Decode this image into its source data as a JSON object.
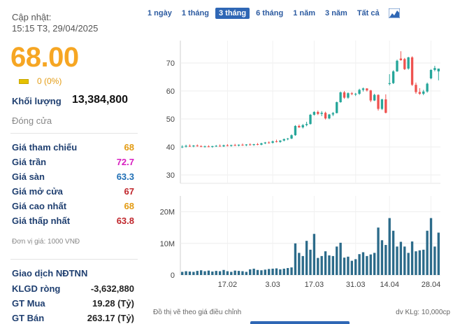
{
  "header": {
    "update_label": "Cập nhật:",
    "update_time": "15:15 T3, 29/04/2025"
  },
  "quote": {
    "price": "68.00",
    "change": "0 (0%)",
    "volume_label": "Khối lượng",
    "volume_value": "13,384,800",
    "status": "Đóng cửa"
  },
  "prices": [
    {
      "label": "Giá tham chiếu",
      "value": "68",
      "color": "#e39b12"
    },
    {
      "label": "Giá trần",
      "value": "72.7",
      "color": "#d81ec0"
    },
    {
      "label": "Giá sàn",
      "value": "63.3",
      "color": "#1f6fb5"
    },
    {
      "label": "Giá mở cửa",
      "value": "67",
      "color": "#c0262c"
    },
    {
      "label": "Giá cao nhất",
      "value": "68",
      "color": "#e39b12"
    },
    {
      "label": "Giá thấp nhất",
      "value": "63.8",
      "color": "#c0262c"
    }
  ],
  "unit_note": "Đơn vị giá: 1000 VNĐ",
  "foreign": {
    "title": "Giao dịch NĐTNN",
    "rows": [
      {
        "label": "KLGD ròng",
        "value": "-3,632,880"
      },
      {
        "label": "GT Mua",
        "value": "19.28 (Tỷ)"
      },
      {
        "label": "GT Bán",
        "value": "263.17 (Tỷ)"
      }
    ]
  },
  "tabs": [
    {
      "label": "1 ngày",
      "active": false
    },
    {
      "label": "1 tháng",
      "active": false
    },
    {
      "label": "3 tháng",
      "active": true
    },
    {
      "label": "6 tháng",
      "active": false
    },
    {
      "label": "1 năm",
      "active": false
    },
    {
      "label": "3 năm",
      "active": false
    },
    {
      "label": "Tất cả",
      "active": false
    }
  ],
  "tab_icon": "area-chart-icon",
  "footer": {
    "left": "Đồ thị vẽ theo giá điều chỉnh",
    "right": "dv KLg: 10,000cp"
  },
  "chart_data": {
    "type": "candlestick",
    "price_axis": {
      "ticks": [
        30,
        40,
        50,
        60,
        70
      ],
      "range": [
        27,
        78
      ]
    },
    "volume_axis": {
      "ticks": [
        "0",
        "10M",
        "20M"
      ],
      "values": [
        0,
        10,
        20
      ],
      "range": [
        0,
        25
      ]
    },
    "x_ticks": [
      {
        "label": "17.02",
        "index": 12
      },
      {
        "label": "3.03",
        "index": 24
      },
      {
        "label": "17.03",
        "index": 35
      },
      {
        "label": "31.03",
        "index": 46
      },
      {
        "label": "14.04",
        "index": 55
      },
      {
        "label": "28.04",
        "index": 66
      }
    ],
    "colors": {
      "up": "#26a69a",
      "down": "#ef5350",
      "neutral": "#555555"
    },
    "candles": [
      {
        "o": 40.0,
        "h": 40.6,
        "l": 39.6,
        "c": 40.1,
        "v": 1.0
      },
      {
        "o": 40.1,
        "h": 40.8,
        "l": 39.8,
        "c": 40.4,
        "v": 1.2
      },
      {
        "o": 40.4,
        "h": 40.9,
        "l": 40.0,
        "c": 40.2,
        "v": 1.1
      },
      {
        "o": 40.2,
        "h": 40.7,
        "l": 39.9,
        "c": 40.5,
        "v": 1.0
      },
      {
        "o": 40.5,
        "h": 40.9,
        "l": 40.1,
        "c": 40.3,
        "v": 1.3
      },
      {
        "o": 40.3,
        "h": 40.6,
        "l": 39.9,
        "c": 40.1,
        "v": 1.5
      },
      {
        "o": 40.1,
        "h": 40.5,
        "l": 39.8,
        "c": 40.2,
        "v": 1.2
      },
      {
        "o": 40.2,
        "h": 40.6,
        "l": 39.9,
        "c": 40.0,
        "v": 1.4
      },
      {
        "o": 40.0,
        "h": 40.4,
        "l": 39.7,
        "c": 40.3,
        "v": 1.1
      },
      {
        "o": 40.3,
        "h": 40.7,
        "l": 40.0,
        "c": 40.4,
        "v": 1.3
      },
      {
        "o": 40.4,
        "h": 40.9,
        "l": 40.1,
        "c": 40.2,
        "v": 1.2
      },
      {
        "o": 40.2,
        "h": 40.8,
        "l": 40.0,
        "c": 40.6,
        "v": 1.6
      },
      {
        "o": 40.6,
        "h": 41.0,
        "l": 40.2,
        "c": 40.4,
        "v": 1.2
      },
      {
        "o": 40.4,
        "h": 40.8,
        "l": 40.1,
        "c": 40.7,
        "v": 1.0
      },
      {
        "o": 40.7,
        "h": 41.1,
        "l": 40.3,
        "c": 40.5,
        "v": 1.4
      },
      {
        "o": 40.5,
        "h": 40.9,
        "l": 40.2,
        "c": 40.8,
        "v": 1.3
      },
      {
        "o": 40.8,
        "h": 41.2,
        "l": 40.4,
        "c": 40.6,
        "v": 1.2
      },
      {
        "o": 40.6,
        "h": 41.0,
        "l": 40.3,
        "c": 40.9,
        "v": 1.0
      },
      {
        "o": 40.9,
        "h": 41.3,
        "l": 40.5,
        "c": 40.7,
        "v": 1.8
      },
      {
        "o": 40.7,
        "h": 41.1,
        "l": 40.4,
        "c": 41.0,
        "v": 2.0
      },
      {
        "o": 41.0,
        "h": 41.4,
        "l": 40.6,
        "c": 40.8,
        "v": 1.6
      },
      {
        "o": 40.8,
        "h": 41.5,
        "l": 40.6,
        "c": 41.3,
        "v": 1.5
      },
      {
        "o": 41.3,
        "h": 41.8,
        "l": 41.0,
        "c": 41.6,
        "v": 1.7
      },
      {
        "o": 41.6,
        "h": 42.0,
        "l": 41.2,
        "c": 41.5,
        "v": 1.9
      },
      {
        "o": 41.5,
        "h": 42.3,
        "l": 41.2,
        "c": 42.0,
        "v": 2.0
      },
      {
        "o": 42.0,
        "h": 42.6,
        "l": 41.6,
        "c": 41.8,
        "v": 2.1
      },
      {
        "o": 41.8,
        "h": 42.4,
        "l": 41.5,
        "c": 42.3,
        "v": 1.8
      },
      {
        "o": 42.3,
        "h": 43.0,
        "l": 42.0,
        "c": 42.8,
        "v": 2.0
      },
      {
        "o": 42.8,
        "h": 43.2,
        "l": 42.4,
        "c": 43.0,
        "v": 2.2
      },
      {
        "o": 43.0,
        "h": 44.5,
        "l": 42.8,
        "c": 44.2,
        "v": 2.4
      },
      {
        "o": 44.2,
        "h": 47.8,
        "l": 44.0,
        "c": 47.5,
        "v": 10.0
      },
      {
        "o": 47.5,
        "h": 48.0,
        "l": 46.8,
        "c": 47.0,
        "v": 7.0
      },
      {
        "o": 47.0,
        "h": 48.2,
        "l": 46.6,
        "c": 47.8,
        "v": 6.0
      },
      {
        "o": 47.8,
        "h": 49.0,
        "l": 47.4,
        "c": 48.2,
        "v": 10.8
      },
      {
        "o": 48.2,
        "h": 51.8,
        "l": 48.0,
        "c": 51.5,
        "v": 8.0
      },
      {
        "o": 51.5,
        "h": 52.8,
        "l": 51.2,
        "c": 52.5,
        "v": 13.0
      },
      {
        "o": 52.5,
        "h": 53.0,
        "l": 51.4,
        "c": 51.8,
        "v": 5.4
      },
      {
        "o": 51.8,
        "h": 52.8,
        "l": 51.0,
        "c": 52.2,
        "v": 6.0
      },
      {
        "o": 52.2,
        "h": 52.6,
        "l": 49.8,
        "c": 50.2,
        "v": 7.5
      },
      {
        "o": 50.2,
        "h": 51.8,
        "l": 49.9,
        "c": 51.6,
        "v": 6.2
      },
      {
        "o": 51.6,
        "h": 52.5,
        "l": 51.0,
        "c": 52.1,
        "v": 6.0
      },
      {
        "o": 52.1,
        "h": 56.2,
        "l": 52.0,
        "c": 56.0,
        "v": 9.0
      },
      {
        "o": 56.0,
        "h": 59.8,
        "l": 55.8,
        "c": 59.5,
        "v": 10.2
      },
      {
        "o": 59.5,
        "h": 60.0,
        "l": 57.2,
        "c": 57.6,
        "v": 5.5
      },
      {
        "o": 57.6,
        "h": 59.5,
        "l": 57.2,
        "c": 59.2,
        "v": 5.8
      },
      {
        "o": 59.2,
        "h": 59.6,
        "l": 58.5,
        "c": 58.9,
        "v": 4.5
      },
      {
        "o": 58.9,
        "h": 59.3,
        "l": 58.2,
        "c": 59.0,
        "v": 5.0
      },
      {
        "o": 59.0,
        "h": 60.8,
        "l": 58.6,
        "c": 60.4,
        "v": 6.6
      },
      {
        "o": 60.4,
        "h": 61.2,
        "l": 59.8,
        "c": 60.9,
        "v": 7.2
      },
      {
        "o": 60.9,
        "h": 61.0,
        "l": 59.8,
        "c": 60.2,
        "v": 6.0
      },
      {
        "o": 60.2,
        "h": 60.4,
        "l": 56.0,
        "c": 56.6,
        "v": 6.5
      },
      {
        "o": 56.6,
        "h": 59.0,
        "l": 56.4,
        "c": 58.6,
        "v": 7.0
      },
      {
        "o": 58.6,
        "h": 58.8,
        "l": 53.0,
        "c": 53.6,
        "v": 15.0
      },
      {
        "o": 53.6,
        "h": 57.2,
        "l": 53.2,
        "c": 57.0,
        "v": 11.0
      },
      {
        "o": 57.0,
        "h": 58.8,
        "l": 52.0,
        "c": 52.2,
        "v": 9.5
      },
      {
        "o": 62.5,
        "h": 66.0,
        "l": 62.0,
        "c": 62.8,
        "v": 18.0
      },
      {
        "o": 62.8,
        "h": 67.4,
        "l": 62.5,
        "c": 67.0,
        "v": 14.0
      },
      {
        "o": 67.0,
        "h": 71.2,
        "l": 66.8,
        "c": 70.8,
        "v": 9.0
      },
      {
        "o": 71.6,
        "h": 74.2,
        "l": 70.8,
        "c": 71.0,
        "v": 10.5
      },
      {
        "o": 71.4,
        "h": 71.8,
        "l": 67.5,
        "c": 67.8,
        "v": 9.0
      },
      {
        "o": 68.0,
        "h": 72.2,
        "l": 67.6,
        "c": 72.0,
        "v": 7.0
      },
      {
        "o": 72.0,
        "h": 72.4,
        "l": 61.8,
        "c": 62.2,
        "v": 10.6
      },
      {
        "o": 62.2,
        "h": 63.0,
        "l": 59.0,
        "c": 59.6,
        "v": 7.5
      },
      {
        "o": 59.6,
        "h": 61.0,
        "l": 58.6,
        "c": 59.0,
        "v": 7.8
      },
      {
        "o": 59.0,
        "h": 60.4,
        "l": 58.5,
        "c": 59.8,
        "v": 8.0
      },
      {
        "o": 59.8,
        "h": 63.0,
        "l": 59.4,
        "c": 62.6,
        "v": 14.0
      },
      {
        "o": 64.5,
        "h": 67.8,
        "l": 64.2,
        "c": 67.5,
        "v": 18.0
      },
      {
        "o": 67.5,
        "h": 69.0,
        "l": 67.0,
        "c": 68.2,
        "v": 9.0
      },
      {
        "o": 67.0,
        "h": 68.0,
        "l": 63.8,
        "c": 68.0,
        "v": 13.4
      }
    ]
  }
}
